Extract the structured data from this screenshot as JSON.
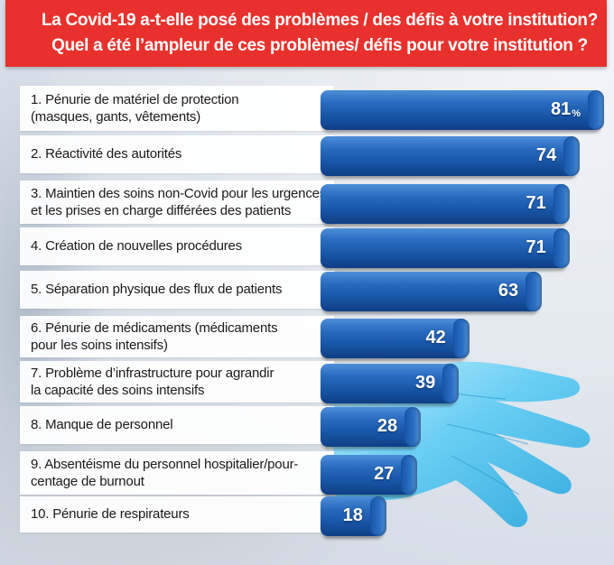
{
  "header": {
    "line1": "La Covid-19 a-t-elle posé des problèmes / des défis à votre institution?",
    "line2": "Quel a été l’ampleur de ces problèmes/ défis pour votre institution ?"
  },
  "colors": {
    "header_bg": "#e8312c",
    "bar": "#1855a6"
  },
  "chart_data": {
    "type": "bar",
    "orientation": "horizontal",
    "unit": "%",
    "categories": [
      "1. Pénurie de matériel de protection (masques, gants, vêtements)",
      "2. Réactivité des autorités",
      "3. Maintien des soins non-Covid pour les urgences et les prises en charge différées des patients",
      "4. Création de nouvelles procédures",
      "5. Séparation physique des flux de patients",
      "6. Pénurie de médicaments (médicaments pour les soins intensifs)",
      "7. Problème d’infrastructure pour agrandir la capacité des soins intensifs",
      "8. Manque de personnel",
      "9. Absentéisme du personnel hospitalier/pourcentage de burnout",
      "10. Pénurie de respirateurs"
    ],
    "values": [
      81,
      74,
      71,
      71,
      63,
      42,
      39,
      28,
      27,
      18
    ],
    "xlim": [
      0,
      81
    ]
  },
  "rows": [
    {
      "lines": [
        "1. Pénurie de matériel de protection",
        "(masques, gants, vêtements)"
      ],
      "value_label": "81",
      "unit_label": "%"
    },
    {
      "lines": [
        "2. Réactivité des autorités"
      ],
      "value_label": "74"
    },
    {
      "lines": [
        "3. Maintien des soins non-Covid pour les urgences",
        "et les prises en charge différées des patients"
      ],
      "value_label": "71"
    },
    {
      "lines": [
        "4. Création de nouvelles procédures"
      ],
      "value_label": "71"
    },
    {
      "lines": [
        "5. Séparation physique des flux de patients"
      ],
      "value_label": "63"
    },
    {
      "lines": [
        "6. Pénurie de médicaments (médicaments",
        "pour les soins intensifs)"
      ],
      "value_label": "42"
    },
    {
      "lines": [
        "7. Problème d’infrastructure pour agrandir",
        "la capacité des soins intensifs"
      ],
      "value_label": "39"
    },
    {
      "lines": [
        "8. Manque de personnel"
      ],
      "value_label": "28"
    },
    {
      "lines": [
        "9. Absentéisme du personnel hospitalier/pour-",
        "centage de burnout"
      ],
      "value_label": "27"
    },
    {
      "lines": [
        "10. Pénurie de respirateurs"
      ],
      "value_label": "18"
    }
  ]
}
